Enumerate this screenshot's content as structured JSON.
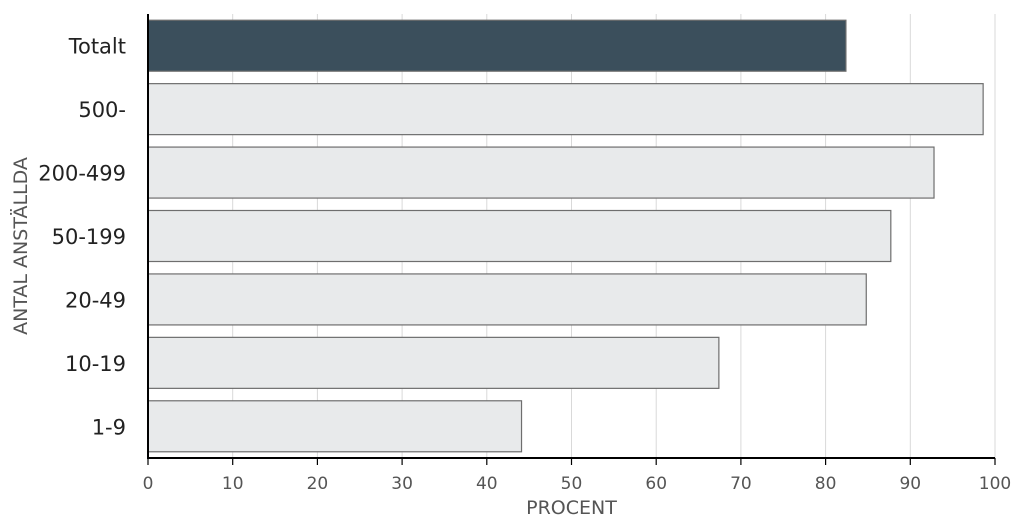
{
  "chart_data": {
    "type": "bar",
    "orientation": "horizontal",
    "categories": [
      "Totalt",
      "500-",
      "200-499",
      "50-199",
      "20-49",
      "10-19",
      "1-9"
    ],
    "values": [
      82.4,
      98.6,
      92.8,
      87.7,
      84.8,
      67.4,
      44.1
    ],
    "highlight": "Totalt",
    "xlabel": "PROCENT",
    "ylabel": "ANTAL ANSTÄLLDA",
    "xlim": [
      0,
      100
    ],
    "xticks": [
      "0",
      "10",
      "20",
      "30",
      "40",
      "50",
      "60",
      "70",
      "80",
      "90",
      "100"
    ],
    "grid": "vertical",
    "colors": {
      "highlight_fill": "#3b4f5c",
      "bar_fill": "#e8eaeb",
      "bar_stroke": "#6e6e6e",
      "grid": "#d9d9d9",
      "axis": "#000000"
    }
  }
}
